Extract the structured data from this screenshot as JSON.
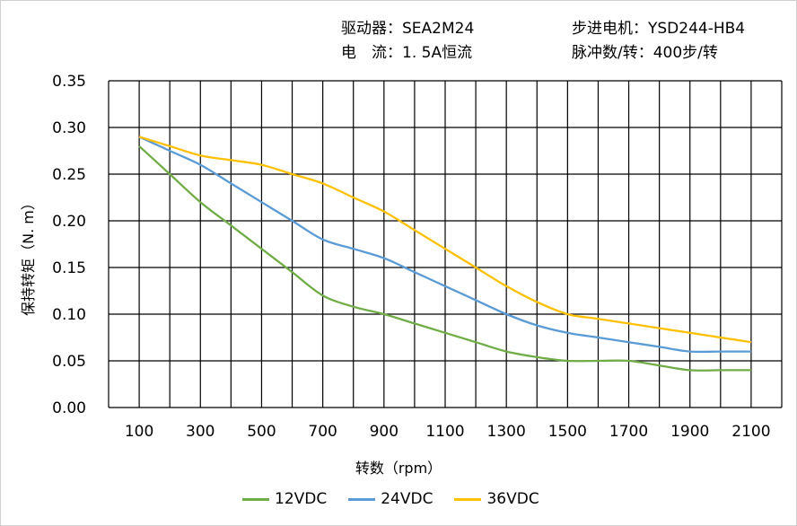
{
  "header": {
    "driver": "驱动器：SEA2M24",
    "current": "电　流：1. 5A恒流",
    "motor": "步进电机：YSD244-HB4",
    "pulses": "脉冲数/转：400步/转"
  },
  "chart_data": {
    "type": "line",
    "xlabel": "转数（rpm）",
    "ylabel": "保持转矩（N. m）",
    "xlim": [
      0,
      2200
    ],
    "ylim": [
      0,
      0.35
    ],
    "grid": true,
    "legend_position": "bottom",
    "x_ticks": [
      "100",
      "300",
      "500",
      "700",
      "900",
      "1100",
      "1300",
      "1500",
      "1700",
      "1900",
      "2100"
    ],
    "y_ticks": [
      "0.00",
      "0.05",
      "0.10",
      "0.15",
      "0.20",
      "0.25",
      "0.30",
      "0.35"
    ],
    "x": [
      100,
      200,
      300,
      400,
      500,
      600,
      700,
      800,
      900,
      1000,
      1100,
      1200,
      1300,
      1400,
      1500,
      1600,
      1700,
      1800,
      1900,
      2000,
      2100
    ],
    "series": [
      {
        "name": "12VDC",
        "color": "#70ad47",
        "values": [
          0.28,
          0.25,
          0.22,
          0.195,
          0.17,
          0.145,
          0.12,
          0.108,
          0.1,
          0.09,
          0.08,
          0.07,
          0.06,
          0.054,
          0.05,
          0.05,
          0.05,
          0.045,
          0.04,
          0.04,
          0.04
        ]
      },
      {
        "name": "24VDC",
        "color": "#5b9bd5",
        "values": [
          0.29,
          0.275,
          0.26,
          0.24,
          0.22,
          0.2,
          0.18,
          0.17,
          0.16,
          0.145,
          0.13,
          0.115,
          0.1,
          0.088,
          0.08,
          0.075,
          0.07,
          0.065,
          0.06,
          0.06,
          0.06
        ]
      },
      {
        "name": "36VDC",
        "color": "#ffc000",
        "values": [
          0.29,
          0.28,
          0.27,
          0.265,
          0.26,
          0.25,
          0.24,
          0.225,
          0.21,
          0.19,
          0.17,
          0.15,
          0.13,
          0.113,
          0.1,
          0.095,
          0.09,
          0.085,
          0.08,
          0.075,
          0.07
        ]
      }
    ]
  }
}
